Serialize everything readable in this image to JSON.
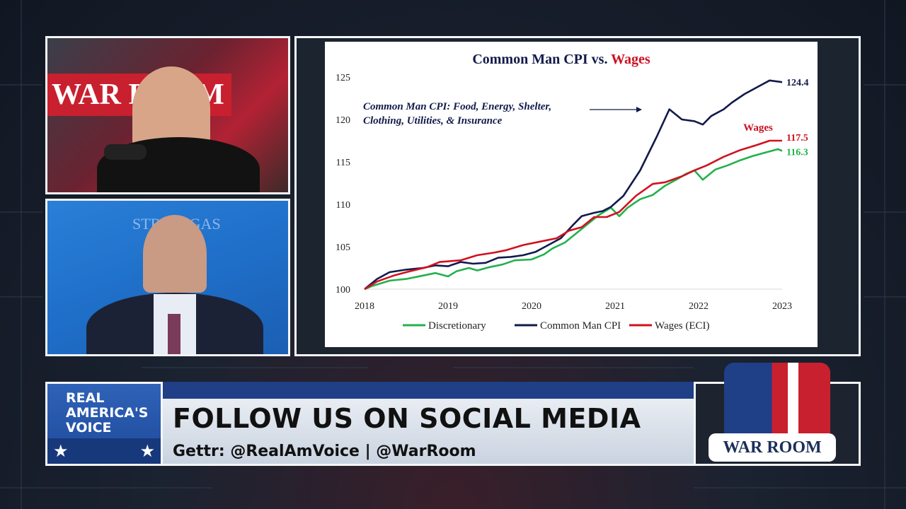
{
  "banner": {
    "network_name": "REAL AMERICA'S VOICE",
    "title": "FOLLOW US ON SOCIAL MEDIA",
    "subtitle": "Gettr: @RealAmVoice | @WarRoom",
    "show_logo": "WAR ROOM"
  },
  "host_panel": {
    "backdrop_text": "WAR ROOM"
  },
  "guest_panel": {
    "backdrop_text": "STRATEGAS"
  },
  "colors": {
    "discretionary": "#22b14c",
    "cpi": "#121a4a",
    "wages": "#d0121e",
    "title_red": "#cc1122"
  },
  "chart_data": {
    "type": "line",
    "title": "Common Man CPI vs.",
    "title_highlight": "Wages",
    "annotation": [
      "Common Man CPI: Food, Energy, Shelter,",
      "Clothing, Utilities, & Insurance"
    ],
    "wages_label": "Wages",
    "ylim": [
      100,
      125
    ],
    "yticks": [
      "100",
      "105",
      "110",
      "115",
      "120",
      "125"
    ],
    "xlim": [
      2018,
      2023
    ],
    "xticks": [
      "2018",
      "2019",
      "2020",
      "2021",
      "2022",
      "2023"
    ],
    "end_labels": {
      "cpi": "124.4",
      "wages": "117.5",
      "discretionary": "116.3"
    },
    "legend": [
      "Discretionary",
      "Common Man CPI",
      "Wages (ECI)"
    ],
    "series": [
      {
        "name": "Discretionary",
        "x": [
          2018.0,
          2018.1,
          2018.3,
          2018.5,
          2018.7,
          2018.85,
          2019.0,
          2019.1,
          2019.25,
          2019.35,
          2019.5,
          2019.65,
          2019.8,
          2020.0,
          2020.15,
          2020.25,
          2020.4,
          2020.55,
          2020.7,
          2020.8,
          2020.95,
          2021.05,
          2021.15,
          2021.3,
          2021.45,
          2021.6,
          2021.75,
          2021.85,
          2021.95,
          2022.05,
          2022.2,
          2022.35,
          2022.5,
          2022.65,
          2022.8,
          2022.95,
          2023.0
        ],
        "y": [
          100.0,
          100.4,
          101.0,
          101.2,
          101.6,
          101.9,
          101.5,
          102.1,
          102.5,
          102.2,
          102.6,
          102.9,
          103.4,
          103.5,
          104.1,
          104.8,
          105.5,
          106.7,
          107.9,
          108.7,
          109.6,
          108.6,
          109.6,
          110.6,
          111.1,
          112.2,
          113.0,
          113.6,
          114.0,
          112.9,
          114.1,
          114.6,
          115.2,
          115.7,
          116.1,
          116.5,
          116.3
        ]
      },
      {
        "name": "Common Man CPI",
        "x": [
          2018.0,
          2018.15,
          2018.3,
          2018.5,
          2018.7,
          2018.85,
          2019.0,
          2019.15,
          2019.3,
          2019.45,
          2019.6,
          2019.75,
          2019.9,
          2020.05,
          2020.2,
          2020.35,
          2020.5,
          2020.6,
          2020.75,
          2020.85,
          2020.95,
          2021.1,
          2021.2,
          2021.3,
          2021.4,
          2021.5,
          2021.65,
          2021.8,
          2021.95,
          2022.05,
          2022.15,
          2022.3,
          2022.4,
          2022.55,
          2022.7,
          2022.85,
          2023.0
        ],
        "y": [
          100.0,
          101.2,
          102.0,
          102.3,
          102.5,
          102.8,
          102.7,
          103.2,
          103.0,
          103.1,
          103.7,
          103.8,
          104.0,
          104.4,
          105.2,
          106.0,
          107.6,
          108.6,
          109.0,
          109.2,
          109.7,
          111.0,
          112.5,
          114.0,
          116.0,
          118.0,
          121.2,
          120.0,
          119.8,
          119.4,
          120.4,
          121.2,
          122.0,
          123.0,
          123.8,
          124.6,
          124.4
        ]
      },
      {
        "name": "Wages (ECI)",
        "x": [
          2018.0,
          2018.15,
          2018.35,
          2018.5,
          2018.75,
          2018.9,
          2019.15,
          2019.35,
          2019.55,
          2019.7,
          2019.9,
          2020.1,
          2020.3,
          2020.45,
          2020.6,
          2020.75,
          2020.9,
          2021.05,
          2021.25,
          2021.45,
          2021.6,
          2021.8,
          2021.95,
          2022.1,
          2022.3,
          2022.5,
          2022.7,
          2022.85,
          2023.0
        ],
        "y": [
          100.0,
          100.9,
          101.6,
          102.0,
          102.6,
          103.2,
          103.4,
          104.0,
          104.3,
          104.6,
          105.2,
          105.6,
          106.0,
          106.9,
          107.3,
          108.5,
          108.5,
          109.1,
          111.0,
          112.4,
          112.6,
          113.3,
          114.0,
          114.6,
          115.6,
          116.4,
          117.0,
          117.5,
          117.5
        ]
      }
    ]
  }
}
